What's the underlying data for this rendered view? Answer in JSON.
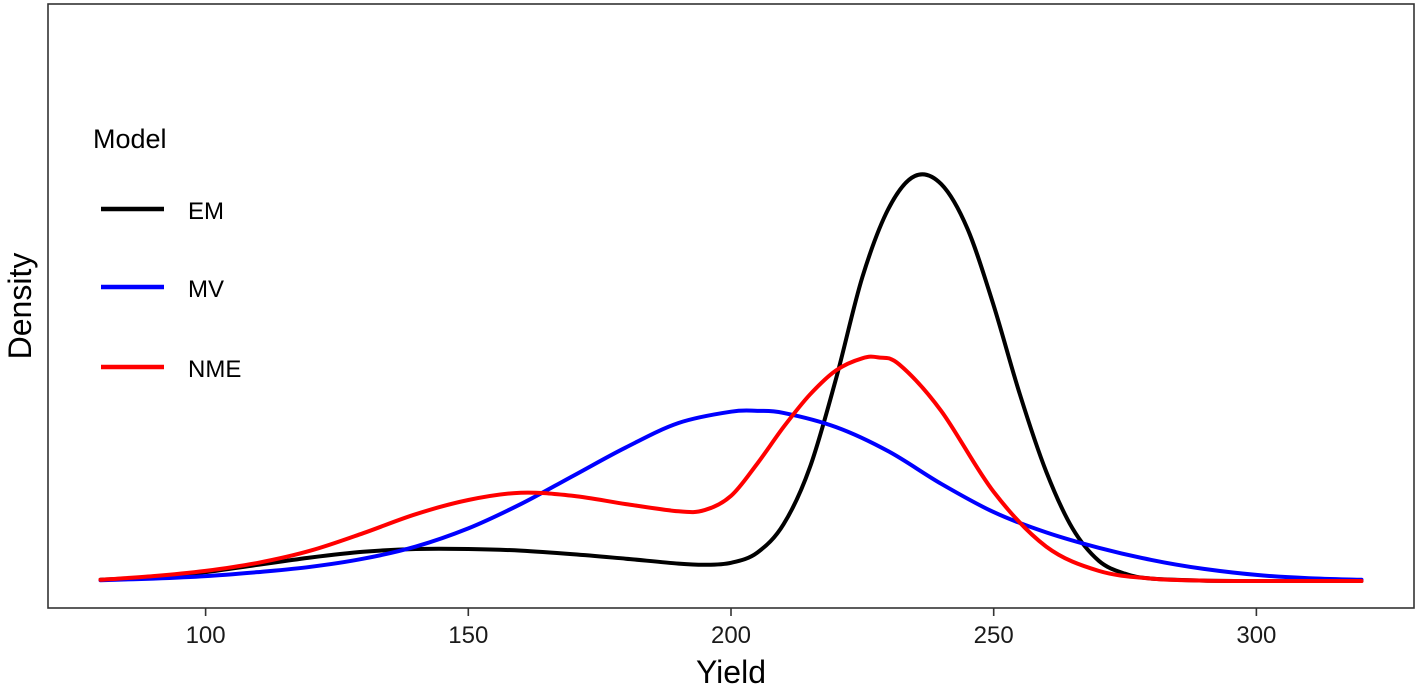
{
  "chart_data": {
    "type": "line",
    "title": "",
    "xlabel": "Yield",
    "ylabel": "Density",
    "xlim": [
      70,
      330
    ],
    "ylim": [
      0,
      1.05
    ],
    "x_ticks": [
      100,
      150,
      200,
      250,
      300
    ],
    "x_tick_labels": [
      "100",
      "150",
      "200",
      "250",
      "300"
    ],
    "y_ticks_shown": false,
    "grid": false,
    "legend": {
      "title": "Model",
      "placement": "top-left",
      "entries": [
        "EM",
        "MV",
        "NME"
      ]
    },
    "series": [
      {
        "name": "EM",
        "color": "#000000",
        "x": [
          80,
          90,
          100,
          110,
          120,
          130,
          140,
          150,
          160,
          170,
          180,
          190,
          195,
          200,
          205,
          210,
          215,
          220,
          225,
          230,
          235,
          240,
          245,
          250,
          255,
          260,
          265,
          270,
          275,
          280,
          290,
          300,
          310,
          320
        ],
        "y": [
          0.003,
          0.01,
          0.022,
          0.04,
          0.058,
          0.072,
          0.079,
          0.079,
          0.075,
          0.066,
          0.055,
          0.043,
          0.04,
          0.045,
          0.07,
          0.14,
          0.28,
          0.5,
          0.75,
          0.92,
          1.0,
          0.98,
          0.87,
          0.68,
          0.46,
          0.27,
          0.13,
          0.05,
          0.018,
          0.006,
          0.001,
          0.0,
          0.0,
          0.0
        ]
      },
      {
        "name": "MV",
        "color": "#0000ff",
        "x": [
          80,
          90,
          100,
          110,
          120,
          130,
          140,
          150,
          160,
          170,
          180,
          190,
          200,
          205,
          210,
          220,
          230,
          240,
          250,
          260,
          270,
          280,
          290,
          300,
          310,
          320
        ],
        "y": [
          0.002,
          0.006,
          0.012,
          0.022,
          0.035,
          0.055,
          0.085,
          0.13,
          0.19,
          0.26,
          0.33,
          0.39,
          0.418,
          0.42,
          0.415,
          0.38,
          0.32,
          0.24,
          0.17,
          0.12,
          0.082,
          0.052,
          0.03,
          0.015,
          0.007,
          0.003
        ]
      },
      {
        "name": "NME",
        "color": "#ff0000",
        "x": [
          80,
          90,
          100,
          110,
          120,
          130,
          140,
          150,
          160,
          170,
          180,
          190,
          195,
          200,
          205,
          210,
          215,
          220,
          225,
          228,
          232,
          240,
          250,
          260,
          270,
          280,
          290,
          300,
          320
        ],
        "y": [
          0.003,
          0.012,
          0.025,
          0.045,
          0.075,
          0.118,
          0.165,
          0.2,
          0.218,
          0.21,
          0.19,
          0.172,
          0.175,
          0.21,
          0.29,
          0.38,
          0.46,
          0.52,
          0.55,
          0.552,
          0.535,
          0.42,
          0.22,
          0.085,
          0.025,
          0.006,
          0.001,
          0.0,
          0.0
        ]
      }
    ]
  }
}
